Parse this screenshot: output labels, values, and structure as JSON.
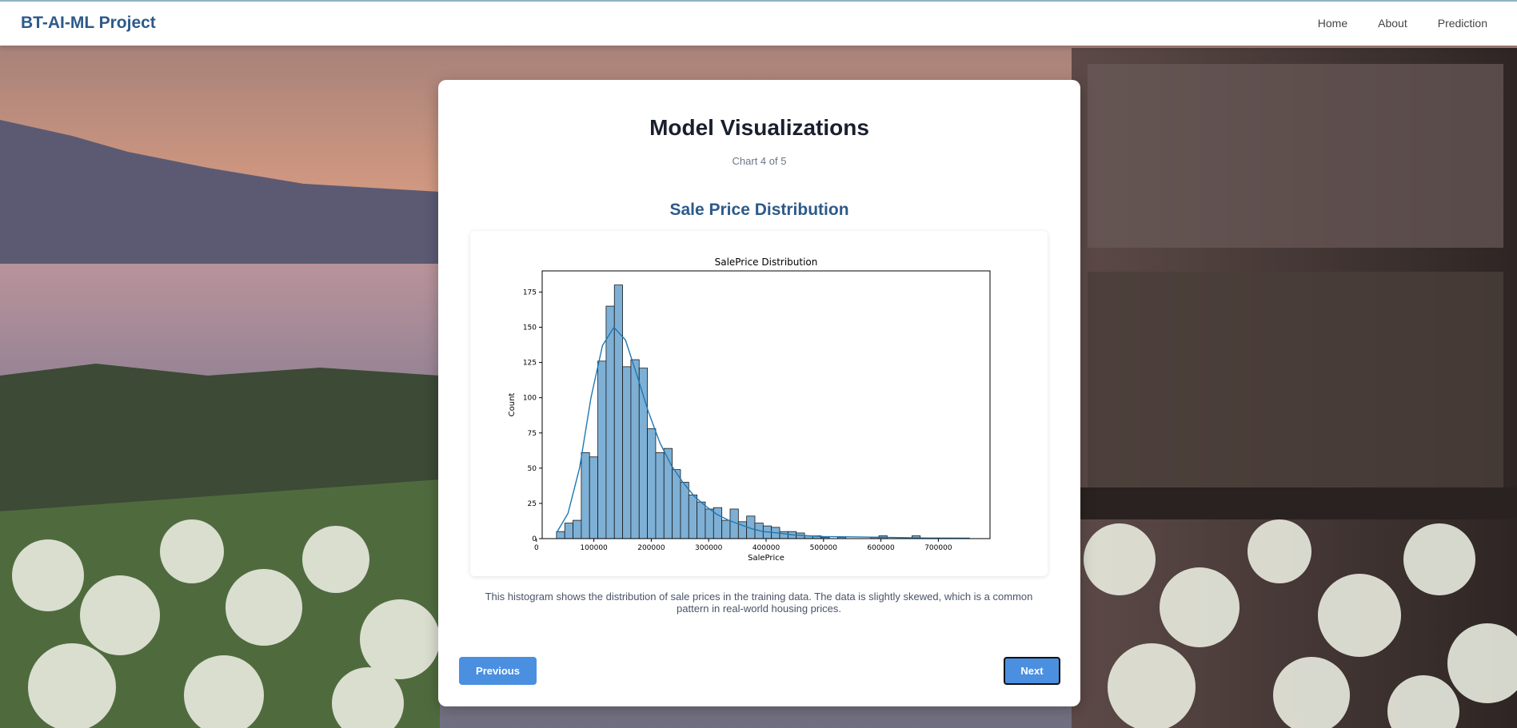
{
  "navbar": {
    "brand": "BT-AI-ML Project",
    "links": [
      {
        "label": "Home"
      },
      {
        "label": "About"
      },
      {
        "label": "Prediction"
      }
    ]
  },
  "card": {
    "title": "Model Visualizations",
    "counter": "Chart 4 of 5",
    "chart_heading": "Sale Price Distribution",
    "description": "This histogram shows the distribution of sale prices in the training data. The data is slightly skewed, which is a common pattern in real-world housing prices.",
    "previous_label": "Previous",
    "next_label": "Next"
  },
  "colors": {
    "brand": "#2d5a8a",
    "button": "#4a8fe0",
    "bar_fill": "#7eb0d5",
    "kde_line": "#1f77b4"
  },
  "chart_data": {
    "type": "bar",
    "title": "SalePrice Distribution",
    "xlabel": "SalePrice",
    "ylabel": "Count",
    "xlim": [
      10000,
      790000
    ],
    "ylim": [
      0,
      190
    ],
    "x_ticks": [
      0,
      100000,
      200000,
      300000,
      400000,
      500000,
      600000,
      700000
    ],
    "x_tick_labels": [
      "0",
      "100000",
      "200000",
      "300000",
      "400000",
      "500000",
      "600000",
      "700000"
    ],
    "y_ticks": [
      0,
      25,
      50,
      75,
      100,
      125,
      150,
      175
    ],
    "y_tick_labels": [
      "0",
      "25",
      "50",
      "75",
      "100",
      "125",
      "150",
      "175"
    ],
    "bin_start": 34900,
    "bin_width": 14400,
    "values": [
      5,
      11,
      13,
      61,
      58,
      126,
      165,
      180,
      122,
      127,
      121,
      78,
      61,
      64,
      49,
      40,
      31,
      26,
      21,
      22,
      13,
      21,
      12,
      16,
      11,
      9,
      8,
      5,
      5,
      4,
      2,
      2,
      1,
      0,
      1,
      0,
      0,
      0,
      1,
      2,
      0,
      0,
      0,
      2,
      0,
      0,
      0,
      0,
      0,
      0
    ],
    "kde_points": [
      [
        35000,
        4
      ],
      [
        55000,
        18
      ],
      [
        75000,
        50
      ],
      [
        95000,
        100
      ],
      [
        115000,
        137
      ],
      [
        135000,
        150
      ],
      [
        155000,
        141
      ],
      [
        175000,
        116
      ],
      [
        195000,
        90
      ],
      [
        215000,
        68
      ],
      [
        235000,
        52
      ],
      [
        255000,
        40
      ],
      [
        275000,
        30
      ],
      [
        295000,
        23
      ],
      [
        315000,
        17
      ],
      [
        335000,
        13
      ],
      [
        355000,
        10
      ],
      [
        375000,
        7
      ],
      [
        395000,
        5
      ],
      [
        420000,
        4
      ],
      [
        450000,
        2.5
      ],
      [
        500000,
        1.5
      ],
      [
        560000,
        1.2
      ],
      [
        620000,
        0.8
      ],
      [
        680000,
        0.4
      ],
      [
        755000,
        0.3
      ]
    ],
    "grid": false,
    "legend": "none"
  }
}
